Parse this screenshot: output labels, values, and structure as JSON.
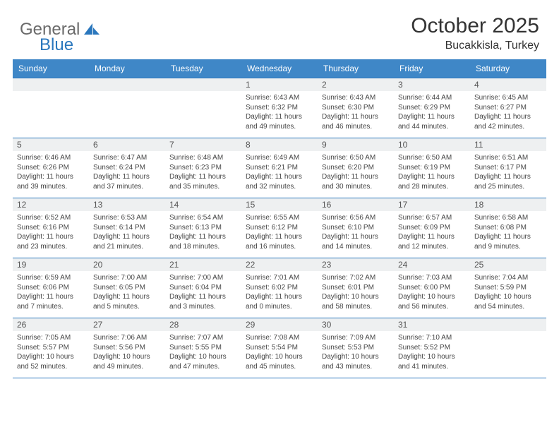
{
  "header": {
    "logo_general": "General",
    "logo_blue": "Blue",
    "month_title": "October 2025",
    "location": "Bucakkisla, Turkey"
  },
  "colors": {
    "header_bg": "#3f87c7",
    "header_text": "#ffffff",
    "daynum_bg": "#eef0f1",
    "border": "#2a77bd",
    "logo_blue": "#2a77bd",
    "logo_gray": "#6a6a6a"
  },
  "day_names": [
    "Sunday",
    "Monday",
    "Tuesday",
    "Wednesday",
    "Thursday",
    "Friday",
    "Saturday"
  ],
  "weeks": [
    [
      null,
      null,
      null,
      {
        "n": "1",
        "sr": "Sunrise: 6:43 AM",
        "ss": "Sunset: 6:32 PM",
        "d1": "Daylight: 11 hours",
        "d2": "and 49 minutes."
      },
      {
        "n": "2",
        "sr": "Sunrise: 6:43 AM",
        "ss": "Sunset: 6:30 PM",
        "d1": "Daylight: 11 hours",
        "d2": "and 46 minutes."
      },
      {
        "n": "3",
        "sr": "Sunrise: 6:44 AM",
        "ss": "Sunset: 6:29 PM",
        "d1": "Daylight: 11 hours",
        "d2": "and 44 minutes."
      },
      {
        "n": "4",
        "sr": "Sunrise: 6:45 AM",
        "ss": "Sunset: 6:27 PM",
        "d1": "Daylight: 11 hours",
        "d2": "and 42 minutes."
      }
    ],
    [
      {
        "n": "5",
        "sr": "Sunrise: 6:46 AM",
        "ss": "Sunset: 6:26 PM",
        "d1": "Daylight: 11 hours",
        "d2": "and 39 minutes."
      },
      {
        "n": "6",
        "sr": "Sunrise: 6:47 AM",
        "ss": "Sunset: 6:24 PM",
        "d1": "Daylight: 11 hours",
        "d2": "and 37 minutes."
      },
      {
        "n": "7",
        "sr": "Sunrise: 6:48 AM",
        "ss": "Sunset: 6:23 PM",
        "d1": "Daylight: 11 hours",
        "d2": "and 35 minutes."
      },
      {
        "n": "8",
        "sr": "Sunrise: 6:49 AM",
        "ss": "Sunset: 6:21 PM",
        "d1": "Daylight: 11 hours",
        "d2": "and 32 minutes."
      },
      {
        "n": "9",
        "sr": "Sunrise: 6:50 AM",
        "ss": "Sunset: 6:20 PM",
        "d1": "Daylight: 11 hours",
        "d2": "and 30 minutes."
      },
      {
        "n": "10",
        "sr": "Sunrise: 6:50 AM",
        "ss": "Sunset: 6:19 PM",
        "d1": "Daylight: 11 hours",
        "d2": "and 28 minutes."
      },
      {
        "n": "11",
        "sr": "Sunrise: 6:51 AM",
        "ss": "Sunset: 6:17 PM",
        "d1": "Daylight: 11 hours",
        "d2": "and 25 minutes."
      }
    ],
    [
      {
        "n": "12",
        "sr": "Sunrise: 6:52 AM",
        "ss": "Sunset: 6:16 PM",
        "d1": "Daylight: 11 hours",
        "d2": "and 23 minutes."
      },
      {
        "n": "13",
        "sr": "Sunrise: 6:53 AM",
        "ss": "Sunset: 6:14 PM",
        "d1": "Daylight: 11 hours",
        "d2": "and 21 minutes."
      },
      {
        "n": "14",
        "sr": "Sunrise: 6:54 AM",
        "ss": "Sunset: 6:13 PM",
        "d1": "Daylight: 11 hours",
        "d2": "and 18 minutes."
      },
      {
        "n": "15",
        "sr": "Sunrise: 6:55 AM",
        "ss": "Sunset: 6:12 PM",
        "d1": "Daylight: 11 hours",
        "d2": "and 16 minutes."
      },
      {
        "n": "16",
        "sr": "Sunrise: 6:56 AM",
        "ss": "Sunset: 6:10 PM",
        "d1": "Daylight: 11 hours",
        "d2": "and 14 minutes."
      },
      {
        "n": "17",
        "sr": "Sunrise: 6:57 AM",
        "ss": "Sunset: 6:09 PM",
        "d1": "Daylight: 11 hours",
        "d2": "and 12 minutes."
      },
      {
        "n": "18",
        "sr": "Sunrise: 6:58 AM",
        "ss": "Sunset: 6:08 PM",
        "d1": "Daylight: 11 hours",
        "d2": "and 9 minutes."
      }
    ],
    [
      {
        "n": "19",
        "sr": "Sunrise: 6:59 AM",
        "ss": "Sunset: 6:06 PM",
        "d1": "Daylight: 11 hours",
        "d2": "and 7 minutes."
      },
      {
        "n": "20",
        "sr": "Sunrise: 7:00 AM",
        "ss": "Sunset: 6:05 PM",
        "d1": "Daylight: 11 hours",
        "d2": "and 5 minutes."
      },
      {
        "n": "21",
        "sr": "Sunrise: 7:00 AM",
        "ss": "Sunset: 6:04 PM",
        "d1": "Daylight: 11 hours",
        "d2": "and 3 minutes."
      },
      {
        "n": "22",
        "sr": "Sunrise: 7:01 AM",
        "ss": "Sunset: 6:02 PM",
        "d1": "Daylight: 11 hours",
        "d2": "and 0 minutes."
      },
      {
        "n": "23",
        "sr": "Sunrise: 7:02 AM",
        "ss": "Sunset: 6:01 PM",
        "d1": "Daylight: 10 hours",
        "d2": "and 58 minutes."
      },
      {
        "n": "24",
        "sr": "Sunrise: 7:03 AM",
        "ss": "Sunset: 6:00 PM",
        "d1": "Daylight: 10 hours",
        "d2": "and 56 minutes."
      },
      {
        "n": "25",
        "sr": "Sunrise: 7:04 AM",
        "ss": "Sunset: 5:59 PM",
        "d1": "Daylight: 10 hours",
        "d2": "and 54 minutes."
      }
    ],
    [
      {
        "n": "26",
        "sr": "Sunrise: 7:05 AM",
        "ss": "Sunset: 5:57 PM",
        "d1": "Daylight: 10 hours",
        "d2": "and 52 minutes."
      },
      {
        "n": "27",
        "sr": "Sunrise: 7:06 AM",
        "ss": "Sunset: 5:56 PM",
        "d1": "Daylight: 10 hours",
        "d2": "and 49 minutes."
      },
      {
        "n": "28",
        "sr": "Sunrise: 7:07 AM",
        "ss": "Sunset: 5:55 PM",
        "d1": "Daylight: 10 hours",
        "d2": "and 47 minutes."
      },
      {
        "n": "29",
        "sr": "Sunrise: 7:08 AM",
        "ss": "Sunset: 5:54 PM",
        "d1": "Daylight: 10 hours",
        "d2": "and 45 minutes."
      },
      {
        "n": "30",
        "sr": "Sunrise: 7:09 AM",
        "ss": "Sunset: 5:53 PM",
        "d1": "Daylight: 10 hours",
        "d2": "and 43 minutes."
      },
      {
        "n": "31",
        "sr": "Sunrise: 7:10 AM",
        "ss": "Sunset: 5:52 PM",
        "d1": "Daylight: 10 hours",
        "d2": "and 41 minutes."
      },
      null
    ]
  ]
}
